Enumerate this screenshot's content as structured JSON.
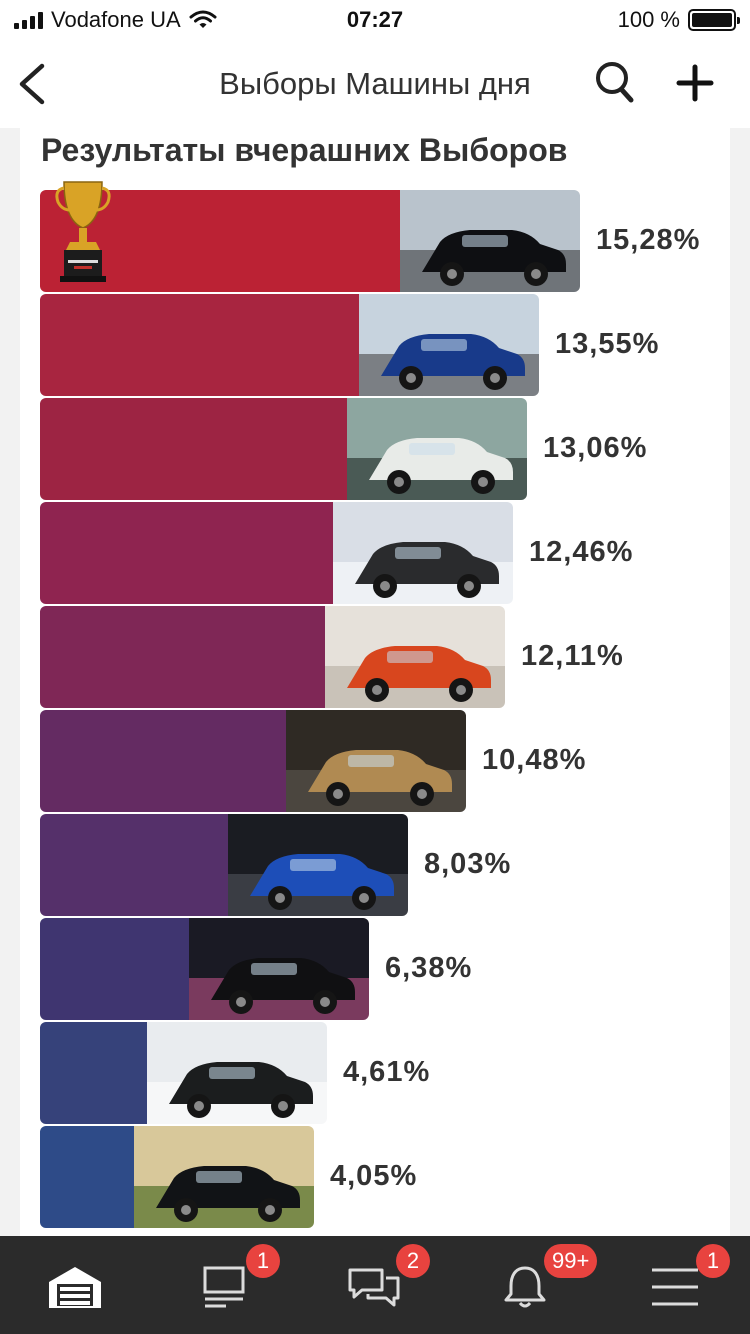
{
  "status_bar": {
    "carrier": "Vodafone UA",
    "time": "07:27",
    "battery": "100 %"
  },
  "nav": {
    "title": "Выборы Машины дня"
  },
  "section": {
    "title": "Результаты вчерашних Выборов"
  },
  "results": [
    {
      "percent": "15,28%",
      "value": 15.28,
      "color": "#bb2234",
      "winner": true,
      "photo": "black-mercedes-sedan"
    },
    {
      "percent": "13,55%",
      "value": 13.55,
      "color": "#a82540",
      "winner": false,
      "photo": "blue-classic-sedan"
    },
    {
      "percent": "13,06%",
      "value": 13.06,
      "color": "#9d2443",
      "winner": false,
      "photo": "white-sports-coupe"
    },
    {
      "percent": "12,46%",
      "value": 12.46,
      "color": "#8f2450",
      "winner": false,
      "photo": "offroad-suv-snow"
    },
    {
      "percent": "12,11%",
      "value": 12.11,
      "color": "#7f2756",
      "winner": false,
      "photo": "orange-kit-car"
    },
    {
      "percent": "10,48%",
      "value": 10.48,
      "color": "#642b62",
      "winner": false,
      "photo": "gold-coupe-forest"
    },
    {
      "percent": "8,03%",
      "value": 8.03,
      "color": "#55306a",
      "winner": false,
      "photo": "blue-lada"
    },
    {
      "percent": "6,38%",
      "value": 6.38,
      "color": "#3f3570",
      "winner": false,
      "photo": "black-car-smoke"
    },
    {
      "percent": "4,61%",
      "value": 4.61,
      "color": "#36427a",
      "winner": false,
      "photo": "black-suv-snow"
    },
    {
      "percent": "4,05%",
      "value": 4.05,
      "color": "#2e4b88",
      "winner": false,
      "photo": "black-sedan-road"
    }
  ],
  "tabs": [
    {
      "name": "garage",
      "icon": "garage-icon",
      "badge": ""
    },
    {
      "name": "feed",
      "icon": "feed-icon",
      "badge": "1"
    },
    {
      "name": "messages",
      "icon": "chat-icon",
      "badge": "2"
    },
    {
      "name": "notifications",
      "icon": "bell-icon",
      "badge": "99+"
    },
    {
      "name": "menu",
      "icon": "menu-icon",
      "badge": "1"
    }
  ],
  "colors": {
    "tab_bar": "#2b2b2b",
    "badge": "#e8433f",
    "trophy_gold": "#d9a326"
  }
}
